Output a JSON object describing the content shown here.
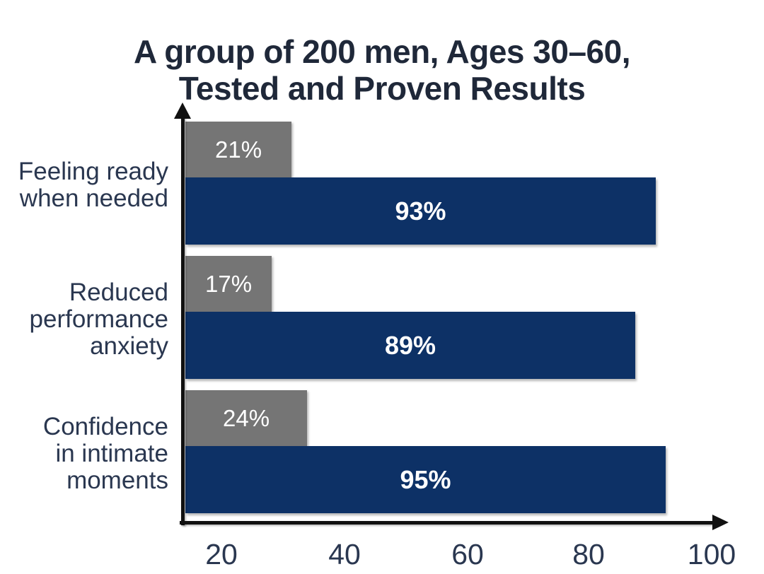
{
  "title": {
    "line1": "A group of 200 men, Ages 30–60,",
    "line2": "Tested and Proven Results"
  },
  "chart_data": {
    "type": "bar",
    "orientation": "horizontal",
    "title": "A group of 200 men, Ages 30–60, Tested and Proven Results",
    "categories": [
      "Feeling ready when needed",
      "Reduced performance anxiety",
      "Confidence in intimate moments"
    ],
    "series": [
      {
        "id": "baseline-gray",
        "color": "#757575",
        "values": [
          21,
          17,
          24
        ]
      },
      {
        "id": "result-navy",
        "color": "#0d3166",
        "values": [
          93,
          89,
          95
        ]
      }
    ],
    "value_suffix": "%",
    "x_ticks": [
      "20",
      "40",
      "60",
      "80",
      "100"
    ],
    "xlim": [
      0,
      100
    ],
    "legend": "none",
    "grid": false
  },
  "category_labels": [
    [
      "Feeling ready",
      "when needed"
    ],
    [
      "Reduced",
      "performance",
      "anxiety"
    ],
    [
      "Confidence",
      "in intimate",
      "moments"
    ]
  ],
  "colors": {
    "bar_gray": "#757575",
    "bar_navy": "#0d3166",
    "title_text": "#1f2839",
    "label_text": "#2a3750",
    "axis": "#111111",
    "value_text": "#ffffff",
    "background": "#ffffff"
  }
}
